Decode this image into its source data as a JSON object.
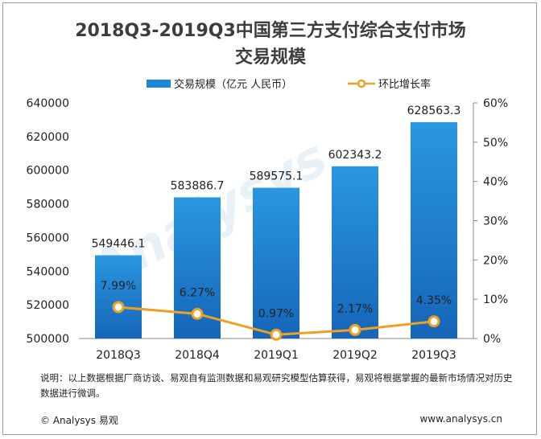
{
  "title_line1": "2018Q3-2019Q3中国第三方支付综合支付市场",
  "title_line2": "交易规模",
  "legend": {
    "bar_label": "交易规模（亿元 人民币）",
    "line_label": "环比增长率"
  },
  "footnote": "说明：以上数据根据厂商访谈、易观自有监测数据和易观研究模型估算获得，易观将根据掌握的最新市场情况对历史数据进行微调。",
  "copyright": "© Analysys 易观",
  "website": "www.analysys.cn",
  "colors": {
    "bar_top": "#2a97e0",
    "bar_bottom": "#1565b8",
    "line": "#f0a020",
    "marker_fill": "#ffffff"
  },
  "chart_data": {
    "type": "bar",
    "categories": [
      "2018Q3",
      "2018Q4",
      "2019Q1",
      "2019Q2",
      "2019Q3"
    ],
    "series": [
      {
        "name": "交易规模（亿元 人民币）",
        "type": "bar",
        "axis": "left",
        "values": [
          549446.1,
          583886.7,
          589575.1,
          602343.2,
          628563.3
        ],
        "labels": [
          "549446.1",
          "583886.7",
          "589575.1",
          "602343.2",
          "628563.3"
        ]
      },
      {
        "name": "环比增长率",
        "type": "line",
        "axis": "right",
        "values": [
          7.99,
          6.27,
          0.97,
          2.17,
          4.35
        ],
        "labels": [
          "7.99%",
          "6.27%",
          "0.97%",
          "2.17%",
          "4.35%"
        ]
      }
    ],
    "y_left": {
      "min": 500000,
      "max": 640000,
      "ticks": [
        500000,
        520000,
        540000,
        560000,
        580000,
        600000,
        620000,
        640000
      ],
      "tick_labels": [
        "500000",
        "520000",
        "540000",
        "560000",
        "580000",
        "600000",
        "620000",
        "640000"
      ]
    },
    "y_right": {
      "min": 0,
      "max": 60,
      "ticks": [
        0,
        10,
        20,
        30,
        40,
        50,
        60
      ],
      "tick_labels": [
        "0%",
        "10%",
        "20%",
        "30%",
        "40%",
        "50%",
        "60%"
      ]
    },
    "grid": false,
    "legend_position": "top"
  }
}
